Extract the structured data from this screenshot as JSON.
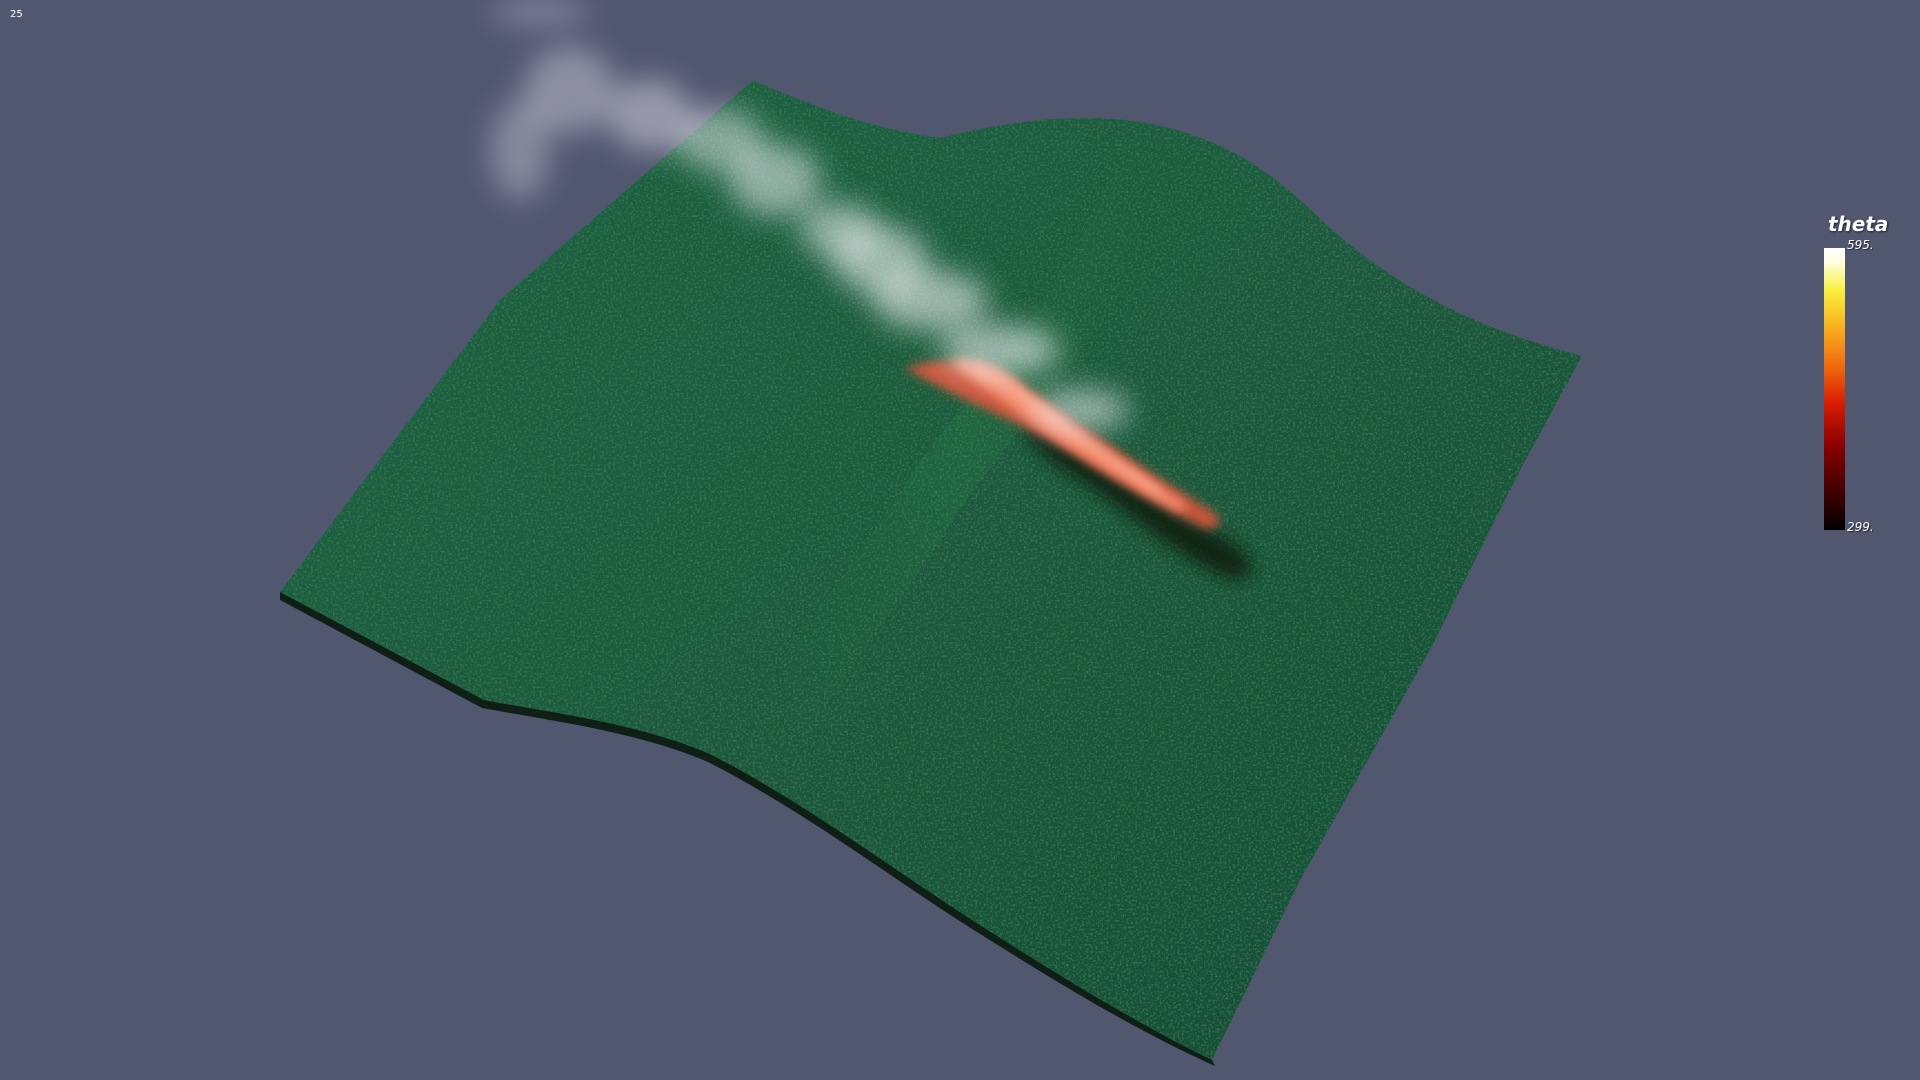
{
  "viewer": {
    "frame_number": "25",
    "background_color": "#525770",
    "terrain_color": "#1e5c3e",
    "smoke_color": "#e8eaee",
    "fire_color": "#f07060"
  },
  "legend": {
    "title": "theta",
    "max_label": "595.",
    "min_label": "299.",
    "colormap": [
      "#000000",
      "#8a0000",
      "#d81c00",
      "#f06a10",
      "#f8b020",
      "#f8f040",
      "#ffffff"
    ]
  }
}
